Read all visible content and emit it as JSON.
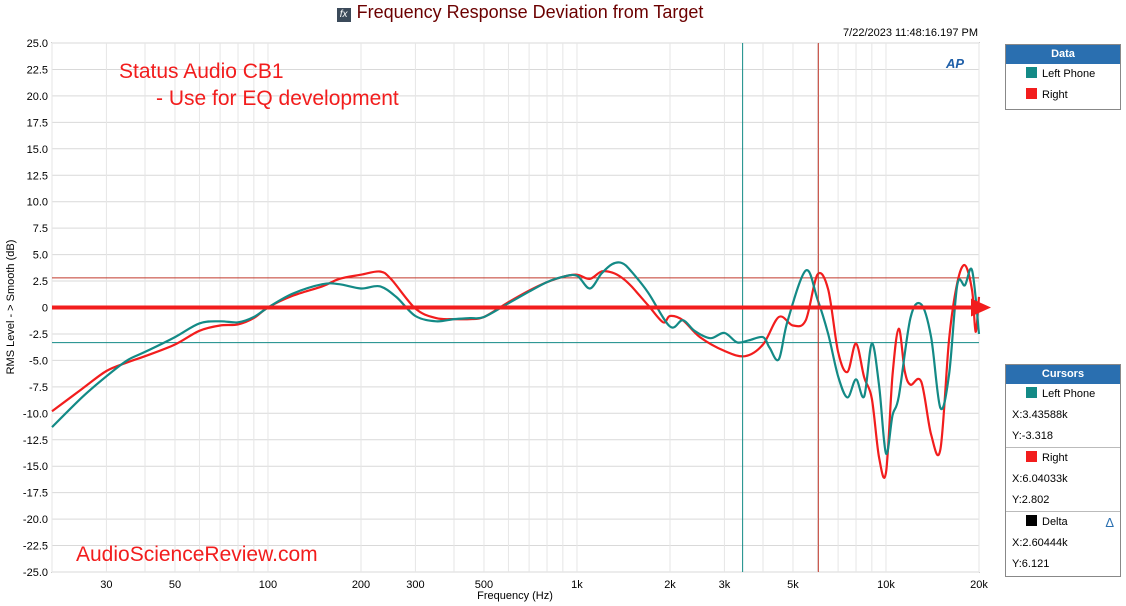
{
  "header": {
    "title": "Frequency Response Deviation from Target",
    "timestamp": "7/22/2023 11:48:16.197 PM",
    "logo": "AP"
  },
  "annotations": {
    "product": "Status Audio CB1",
    "note": "- Use for EQ development",
    "watermark": "AudioScienceReview.com"
  },
  "data_panel": {
    "title": "Data",
    "items": [
      {
        "label": "Left Phone",
        "color": "#138a86"
      },
      {
        "label": "Right",
        "color": "#f21d1d"
      }
    ]
  },
  "cursors_panel": {
    "title": "Cursors",
    "left": {
      "label": "Left Phone",
      "x": "X:3.43588k",
      "y": "Y:-3.318"
    },
    "right": {
      "label": "Right",
      "x": "X:6.04033k",
      "y": "Y:2.802"
    },
    "delta": {
      "label": "Delta",
      "x": "X:2.60444k",
      "y": "Y:6.121"
    }
  },
  "chart_data": {
    "type": "line",
    "title": "Frequency Response Deviation from Target",
    "xlabel": "Frequency (Hz)",
    "ylabel": "RMS Level - > Smooth (dB)",
    "x_scale": "log",
    "xlim": [
      20,
      20000
    ],
    "ylim": [
      -25,
      25
    ],
    "x_ticks": [
      30,
      50,
      100,
      200,
      300,
      500,
      1000,
      2000,
      3000,
      5000,
      10000,
      20000
    ],
    "x_tick_labels": [
      "30",
      "50",
      "100",
      "200",
      "300",
      "500",
      "1k",
      "2k",
      "3k",
      "5k",
      "10k",
      "20k"
    ],
    "y_ticks": [
      25,
      22.5,
      20,
      17.5,
      15,
      12.5,
      10,
      7.5,
      5,
      2.5,
      0,
      -2.5,
      -5,
      -7.5,
      -10,
      -12.5,
      -15,
      -17.5,
      -20,
      -22.5,
      -25
    ],
    "y_tick_labels": [
      "25.0",
      "22.5",
      "20.0",
      "17.5",
      "15.0",
      "12.5",
      "10.0",
      "7.5",
      "5.0",
      "2.5",
      "0",
      "-2.5",
      "-5.0",
      "-7.5",
      "-10.0",
      "-12.5",
      "-15.0",
      "-17.5",
      "-20.0",
      "-22.5",
      "-25.0"
    ],
    "grid": true,
    "reference_line": {
      "y": 0,
      "color": "#f21d1d"
    },
    "cursors": [
      {
        "name": "Left Phone",
        "x": 3435.88,
        "y": -3.318,
        "color": "#138a86"
      },
      {
        "name": "Right",
        "x": 6040.33,
        "y": 2.802,
        "color": "#c0392b"
      }
    ],
    "series": [
      {
        "name": "Left Phone",
        "color": "#138a86",
        "points": [
          [
            20,
            -11.3
          ],
          [
            25,
            -8.5
          ],
          [
            30,
            -6.5
          ],
          [
            35,
            -5
          ],
          [
            40,
            -4.2
          ],
          [
            50,
            -2.8
          ],
          [
            60,
            -1.5
          ],
          [
            70,
            -1.3
          ],
          [
            80,
            -1.4
          ],
          [
            90,
            -0.9
          ],
          [
            100,
            0
          ],
          [
            120,
            1.3
          ],
          [
            150,
            2.2
          ],
          [
            170,
            2.2
          ],
          [
            200,
            1.8
          ],
          [
            230,
            2
          ],
          [
            260,
            1
          ],
          [
            300,
            -0.8
          ],
          [
            350,
            -1.3
          ],
          [
            400,
            -1.1
          ],
          [
            450,
            -1.0
          ],
          [
            500,
            -0.9
          ],
          [
            600,
            0.4
          ],
          [
            700,
            1.5
          ],
          [
            800,
            2.4
          ],
          [
            900,
            2.9
          ],
          [
            1000,
            3
          ],
          [
            1100,
            1.8
          ],
          [
            1200,
            3.2
          ],
          [
            1300,
            4.1
          ],
          [
            1400,
            4.2
          ],
          [
            1500,
            3.4
          ],
          [
            1700,
            1.4
          ],
          [
            2000,
            -1.8
          ],
          [
            2200,
            -1.2
          ],
          [
            2400,
            -2.2
          ],
          [
            2700,
            -2.9
          ],
          [
            3000,
            -2.4
          ],
          [
            3300,
            -3.3
          ],
          [
            3600,
            -3.1
          ],
          [
            4000,
            -2.8
          ],
          [
            4200,
            -3.8
          ],
          [
            4500,
            -4.9
          ],
          [
            4800,
            -1.3
          ],
          [
            5500,
            3.5
          ],
          [
            6000,
            0.8
          ],
          [
            6500,
            -2.5
          ],
          [
            7000,
            -6.5
          ],
          [
            7500,
            -8.5
          ],
          [
            8000,
            -6.8
          ],
          [
            8500,
            -8.4
          ],
          [
            9000,
            -3.4
          ],
          [
            9500,
            -7.4
          ],
          [
            10000,
            -13.8
          ],
          [
            10500,
            -10.2
          ],
          [
            11000,
            -8.4
          ],
          [
            12000,
            -1
          ],
          [
            13000,
            0.3
          ],
          [
            14000,
            -2.8
          ],
          [
            15000,
            -9.5
          ],
          [
            16000,
            -6.3
          ],
          [
            17000,
            2.1
          ],
          [
            18000,
            2.1
          ],
          [
            19000,
            3.5
          ],
          [
            20000,
            -2.5
          ]
        ]
      },
      {
        "name": "Right",
        "color": "#f21d1d",
        "points": [
          [
            20,
            -9.8
          ],
          [
            25,
            -7.7
          ],
          [
            30,
            -6
          ],
          [
            35,
            -5.2
          ],
          [
            40,
            -4.6
          ],
          [
            50,
            -3.5
          ],
          [
            60,
            -2.2
          ],
          [
            70,
            -1.7
          ],
          [
            80,
            -1.6
          ],
          [
            90,
            -1.0
          ],
          [
            100,
            0
          ],
          [
            120,
            1.1
          ],
          [
            150,
            2.0
          ],
          [
            170,
            2.7
          ],
          [
            200,
            3.1
          ],
          [
            230,
            3.4
          ],
          [
            250,
            2.7
          ],
          [
            300,
            -0.1
          ],
          [
            350,
            -1.0
          ],
          [
            400,
            -1.1
          ],
          [
            450,
            -1.1
          ],
          [
            500,
            -0.9
          ],
          [
            600,
            0.5
          ],
          [
            700,
            1.6
          ],
          [
            800,
            2.4
          ],
          [
            900,
            2.9
          ],
          [
            1000,
            3.1
          ],
          [
            1100,
            2.7
          ],
          [
            1200,
            3.4
          ],
          [
            1300,
            3.3
          ],
          [
            1400,
            2.8
          ],
          [
            1500,
            2.0
          ],
          [
            1700,
            0.2
          ],
          [
            1900,
            -1.4
          ],
          [
            2000,
            -0.8
          ],
          [
            2200,
            -1.2
          ],
          [
            2500,
            -2.8
          ],
          [
            3000,
            -4.1
          ],
          [
            3500,
            -4.6
          ],
          [
            4000,
            -3.5
          ],
          [
            4500,
            -0.9
          ],
          [
            5000,
            -1.7
          ],
          [
            5500,
            -1.2
          ],
          [
            6000,
            3.1
          ],
          [
            6500,
            1.7
          ],
          [
            7000,
            -4.2
          ],
          [
            7500,
            -6.1
          ],
          [
            8000,
            -3.4
          ],
          [
            8500,
            -6.6
          ],
          [
            9000,
            -8.6
          ],
          [
            9500,
            -14.2
          ],
          [
            10000,
            -15.6
          ],
          [
            10500,
            -6.4
          ],
          [
            11000,
            -2
          ],
          [
            11500,
            -6
          ],
          [
            12000,
            -7.3
          ],
          [
            13000,
            -7
          ],
          [
            14000,
            -12
          ],
          [
            15000,
            -13.4
          ],
          [
            16000,
            -3
          ],
          [
            17000,
            2.3
          ],
          [
            18000,
            4.0
          ],
          [
            19000,
            1.6
          ],
          [
            19500,
            -2.3
          ],
          [
            20000,
            1.0
          ]
        ]
      }
    ]
  }
}
